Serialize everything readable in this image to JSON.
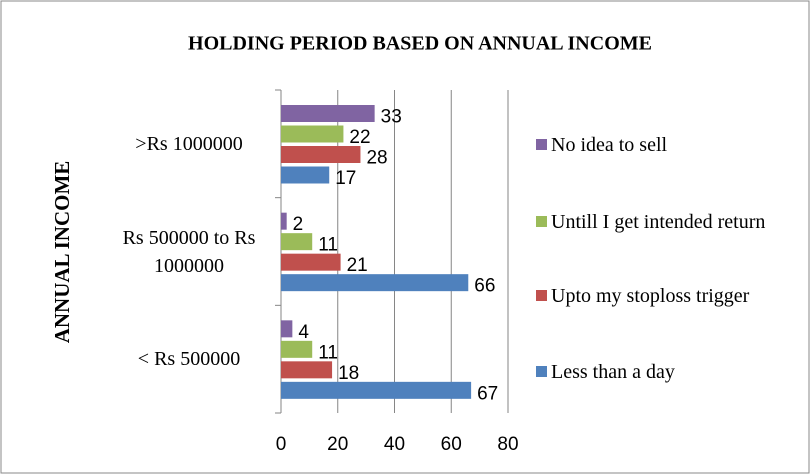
{
  "chart_data": {
    "type": "bar",
    "orientation": "horizontal",
    "title": "HOLDING PERIOD BASED ON ANNUAL INCOME",
    "y_axis_label": "ANNUAL INCOME",
    "categories": [
      "< Rs 500000",
      "Rs 500000 to Rs 1000000",
      ">Rs 1000000"
    ],
    "series": [
      {
        "name": "Less than a day",
        "color": "#4f81bd",
        "values": [
          67,
          66,
          17
        ]
      },
      {
        "name": "Upto my stoploss trigger",
        "color": "#c0504d",
        "values": [
          18,
          21,
          28
        ]
      },
      {
        "name": "Untill I get intended return",
        "color": "#9bbb59",
        "values": [
          11,
          11,
          22
        ]
      },
      {
        "name": "No idea to sell",
        "color": "#8064a2",
        "values": [
          4,
          2,
          33
        ]
      }
    ],
    "xlim": [
      0,
      80
    ],
    "xticks": [
      0,
      20,
      40,
      60,
      80
    ],
    "grid": true,
    "legend": "right"
  }
}
